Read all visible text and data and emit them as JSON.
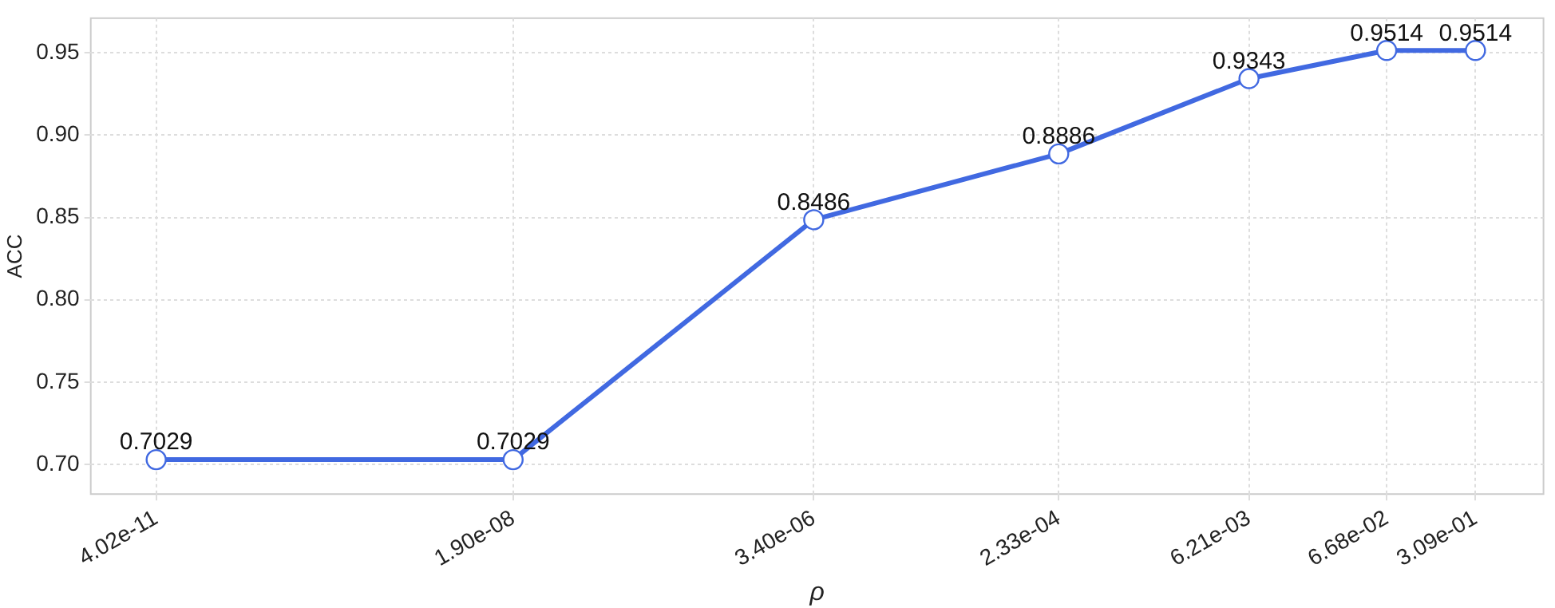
{
  "chart_data": {
    "type": "line",
    "xlabel": "ρ",
    "ylabel": "ACC",
    "log": "x",
    "x": [
      4.02e-11,
      1.9e-08,
      3.4e-06,
      0.000233,
      0.00621,
      0.0668,
      0.309
    ],
    "series": [
      {
        "color": "#4169e1",
        "values": [
          0.7029,
          0.7029,
          0.8486,
          0.8886,
          0.9343,
          0.9514,
          0.9514
        ]
      }
    ],
    "xlim": [
      1.3e-11,
      1.0
    ],
    "xticks": [
      {
        "value": 4.02e-11,
        "label": "4.02e-11"
      },
      {
        "value": 1.9e-08,
        "label": "1.90e-08"
      },
      {
        "value": 3.4e-06,
        "label": "3.40e-06"
      },
      {
        "value": 0.000233,
        "label": "2.33e-04"
      },
      {
        "value": 0.00621,
        "label": "6.21e-03"
      },
      {
        "value": 0.0668,
        "label": "6.68e-02"
      },
      {
        "value": 0.309,
        "label": "3.09e-01"
      }
    ],
    "ylim": [
      0.682,
      0.971
    ],
    "yticks": [
      {
        "value": 0.7,
        "label": "0.70"
      },
      {
        "value": 0.75,
        "label": "0.75"
      },
      {
        "value": 0.8,
        "label": "0.80"
      },
      {
        "value": 0.85,
        "label": "0.85"
      },
      {
        "value": 0.9,
        "label": "0.90"
      },
      {
        "value": 0.95,
        "label": "0.95"
      }
    ],
    "grid": true,
    "marker": "circle",
    "line_style": "solid",
    "data_labels": true,
    "legend": false
  }
}
